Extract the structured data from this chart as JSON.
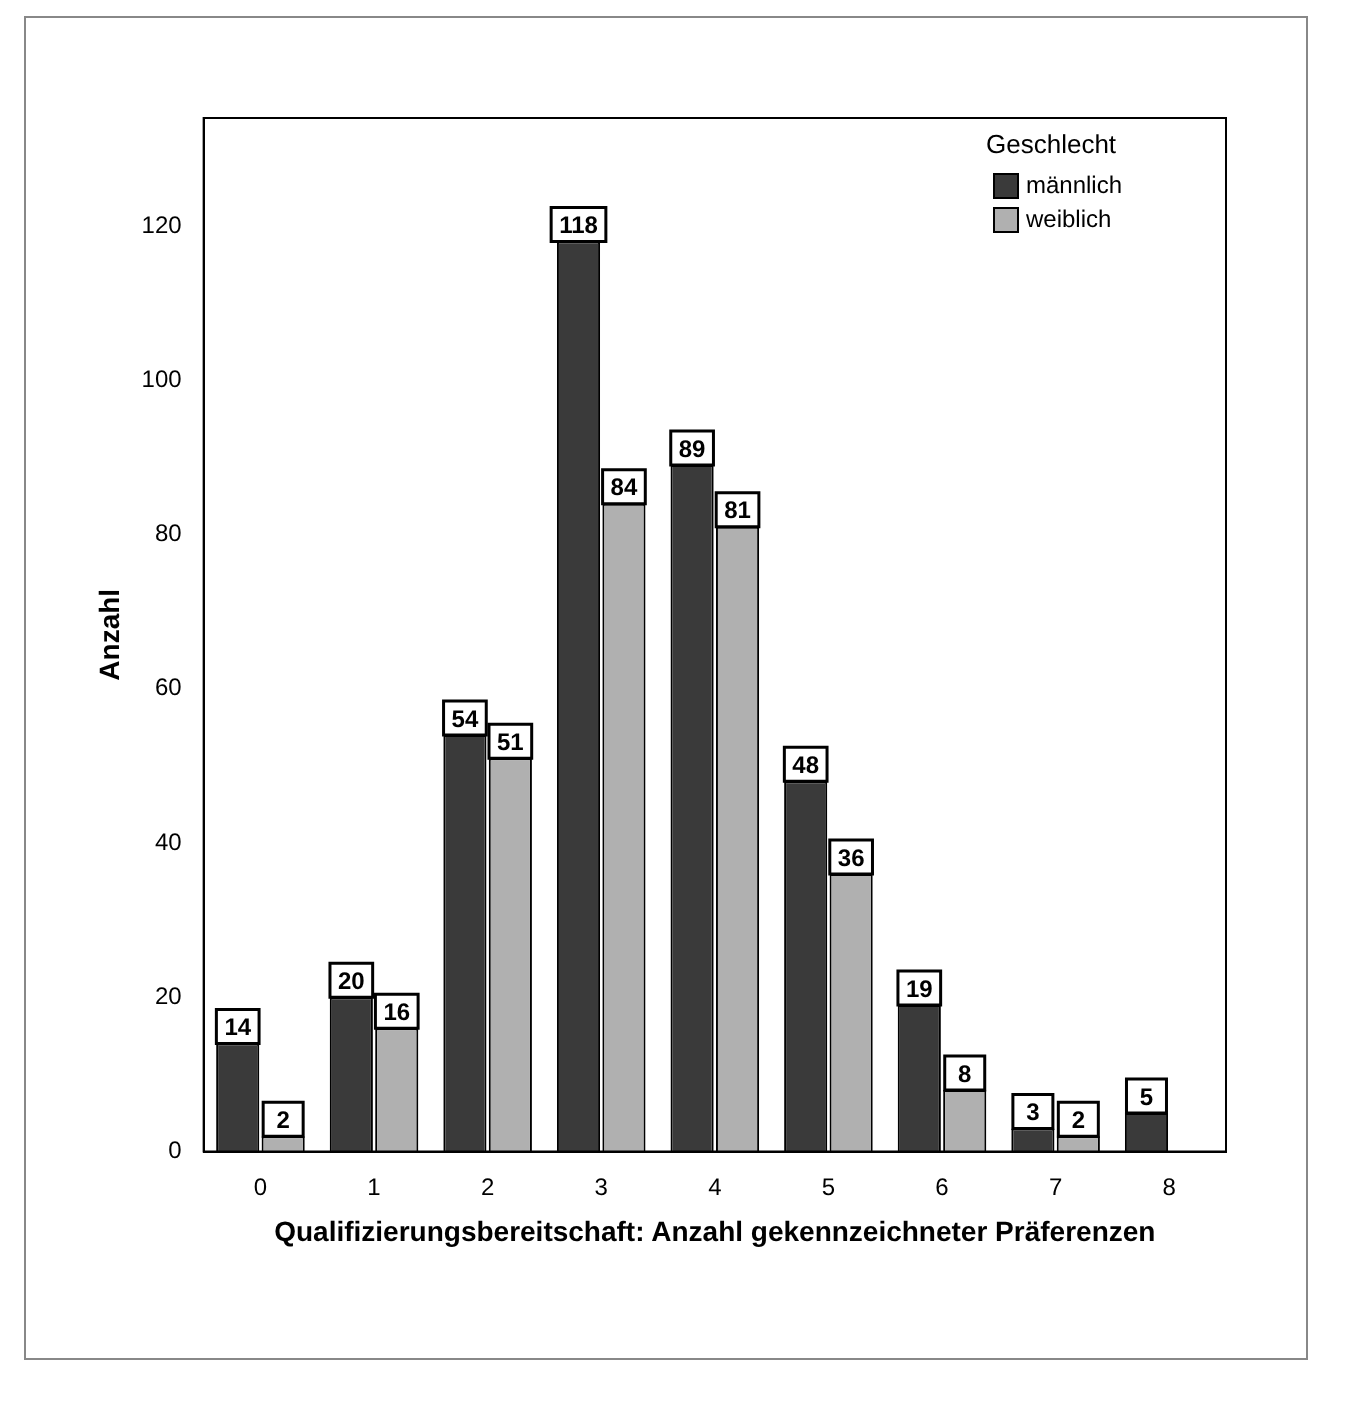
{
  "chart_data": {
    "type": "bar",
    "xlabel": "Qualifizierungsbereitschaft: Anzahl gekennzeichneter Präferenzen",
    "ylabel": "Anzahl",
    "legend_title": "Geschlecht",
    "categories": [
      "0",
      "1",
      "2",
      "3",
      "4",
      "5",
      "6",
      "7",
      "8"
    ],
    "series": [
      {
        "name": "männlich",
        "color": "#3a3a3a",
        "values": [
          14,
          20,
          54,
          118,
          89,
          48,
          19,
          3,
          5
        ]
      },
      {
        "name": "weiblich",
        "color": "#b0b0b0",
        "values": [
          2,
          16,
          51,
          84,
          81,
          36,
          8,
          2,
          null
        ]
      }
    ],
    "ylim": [
      0,
      134
    ],
    "yticks": [
      0,
      20,
      40,
      60,
      80,
      100,
      120
    ],
    "grid": false,
    "legend": "top right",
    "data_labels": true
  }
}
